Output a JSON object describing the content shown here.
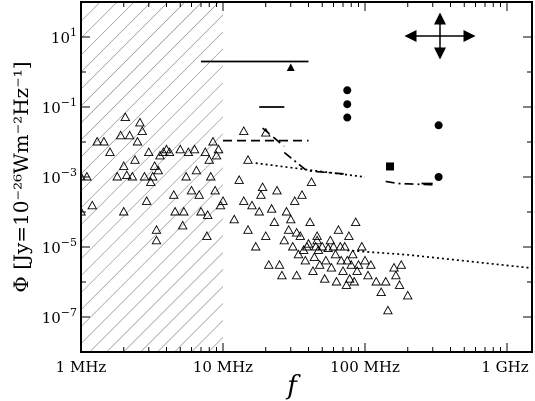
{
  "chart_data": {
    "type": "scatter",
    "xlabel": "f",
    "ylabel": "Φ [Jy=10⁻²⁶Wm⁻²Hz⁻¹]",
    "xscale": "log",
    "yscale": "log",
    "xlim_hz": [
      1000000,
      1500000000
    ],
    "ylim": [
      1e-08,
      100
    ],
    "x_ticks": [
      {
        "value": 1000000,
        "label": "1 MHz"
      },
      {
        "value": 10000000,
        "label": "10 MHz"
      },
      {
        "value": 100000000,
        "label": "100 MHz"
      },
      {
        "value": 1000000000,
        "label": "1 GHz"
      }
    ],
    "y_ticks": [
      {
        "value": 10,
        "base": "10",
        "exp": "1"
      },
      {
        "value": 0.1,
        "base": "10",
        "exp": "−1"
      },
      {
        "value": 0.001,
        "base": "10",
        "exp": "−3"
      },
      {
        "value": 1e-05,
        "base": "10",
        "exp": "−5"
      },
      {
        "value": 1e-07,
        "base": "10",
        "exp": "−7"
      }
    ],
    "hatched_region_hz": [
      1000000,
      10000000
    ],
    "legend": "none",
    "grid": false,
    "series": [
      {
        "marker": "open-triangle",
        "points": [
          [
            1000000.0,
            0.001
          ],
          [
            1000000.0,
            0.0001
          ],
          [
            1100000.0,
            0.001
          ],
          [
            1200000.0,
            0.00015
          ],
          [
            1300000.0,
            0.01
          ],
          [
            1450000.0,
            0.01
          ],
          [
            1600000.0,
            0.005
          ],
          [
            1800000.0,
            0.001
          ],
          [
            1900000.0,
            0.015
          ],
          [
            2000000.0,
            0.002
          ],
          [
            2000000.0,
            0.0001
          ],
          [
            2050000.0,
            0.05
          ],
          [
            2100000.0,
            0.0011
          ],
          [
            2200000.0,
            0.015
          ],
          [
            2300000.0,
            0.001
          ],
          [
            2400000.0,
            0.003
          ],
          [
            2500000.0,
            0.01
          ],
          [
            2600000.0,
            0.035
          ],
          [
            2700000.0,
            0.02
          ],
          [
            2800000.0,
            0.001
          ],
          [
            2900000.0,
            0.0002
          ],
          [
            3000000.0,
            0.005
          ],
          [
            3100000.0,
            0.0007
          ],
          [
            3200000.0,
            0.001
          ],
          [
            3300000.0,
            0.002
          ],
          [
            3400000.0,
            3e-05
          ],
          [
            3400000.0,
            1.5e-05
          ],
          [
            3500000.0,
            0.0015
          ],
          [
            3600000.0,
            0.004
          ],
          [
            3800000.0,
            0.005
          ],
          [
            4000000.0,
            0.006
          ],
          [
            4200000.0,
            0.005
          ],
          [
            4500000.0,
            0.0003
          ],
          [
            4600000.0,
            0.0001
          ],
          [
            5000000.0,
            0.006
          ],
          [
            5200000.0,
            4e-05
          ],
          [
            5300000.0,
            0.0001
          ],
          [
            5500000.0,
            0.001
          ],
          [
            5700000.0,
            0.005
          ],
          [
            6000000.0,
            0.0004
          ],
          [
            6300000.0,
            0.006
          ],
          [
            6500000.0,
            0.0015
          ],
          [
            6800000.0,
            0.0003
          ],
          [
            7000000.0,
            0.0001
          ],
          [
            7500000.0,
            0.005
          ],
          [
            7700000.0,
            2e-05
          ],
          [
            7800000.0,
            8e-05
          ],
          [
            8000000.0,
            0.003
          ],
          [
            8200000.0,
            0.001
          ],
          [
            8500000.0,
            0.01
          ],
          [
            8800000.0,
            0.0004
          ],
          [
            9000000.0,
            0.004
          ],
          [
            9300000.0,
            0.006
          ],
          [
            9600000.0,
            0.00015
          ],
          [
            10000000.0,
            0.0002
          ],
          [
            14000000.0,
            0.02
          ],
          [
            20000000.0,
            0.018
          ],
          [
            15000000.0,
            0.003
          ],
          [
            13000000.0,
            0.0008
          ],
          [
            12000000.0,
            6e-05
          ],
          [
            14000000.0,
            0.0002
          ],
          [
            15000000.0,
            3e-05
          ],
          [
            16000000.0,
            0.00015
          ],
          [
            17000000.0,
            1e-05
          ],
          [
            18000000.0,
            0.0001
          ],
          [
            18500000.0,
            0.0003
          ],
          [
            19000000.0,
            0.0005
          ],
          [
            20000000.0,
            2e-05
          ],
          [
            21000000.0,
            3e-06
          ],
          [
            22000000.0,
            0.00012
          ],
          [
            23000000.0,
            5e-05
          ],
          [
            24000000.0,
            0.0004
          ],
          [
            25000000.0,
            3e-06
          ],
          [
            26000000.0,
            1.5e-06
          ],
          [
            27000000.0,
            1.5e-05
          ],
          [
            28000000.0,
            0.0001
          ],
          [
            29000000.0,
            3e-05
          ],
          [
            30000000.0,
            6e-05
          ],
          [
            31000000.0,
            1e-05
          ],
          [
            32000000.0,
            0.0002
          ],
          [
            33000000.0,
            1.5e-06
          ],
          [
            34000000.0,
            6e-06
          ],
          [
            35000000.0,
            2e-05
          ],
          [
            36000000.0,
            0.0003
          ],
          [
            37000000.0,
            8e-06
          ],
          [
            38000000.0,
            4e-06
          ],
          [
            39000000.0,
            1e-05
          ],
          [
            40000000.0,
            1.2e-05
          ],
          [
            41000000.0,
            5e-05
          ],
          [
            42000000.0,
            0.0007
          ],
          [
            43000000.0,
            2e-06
          ],
          [
            44000000.0,
            5e-06
          ],
          [
            45000000.0,
            1e-05
          ],
          [
            46000000.0,
            2e-05
          ],
          [
            47000000.0,
            8e-06
          ],
          [
            48000000.0,
            3e-06
          ],
          [
            50000000.0,
            1e-05
          ],
          [
            52000000.0,
            1.2e-06
          ],
          [
            53000000.0,
            4e-06
          ],
          [
            55000000.0,
            9e-06
          ],
          [
            57000000.0,
            1.5e-05
          ],
          [
            58000000.0,
            2.5e-06
          ],
          [
            60000000.0,
            1e-05
          ],
          [
            62000000.0,
            6e-06
          ],
          [
            63000000.0,
            1e-06
          ],
          [
            65000000.0,
            3e-05
          ],
          [
            67000000.0,
            1e-05
          ],
          [
            68000000.0,
            4e-06
          ],
          [
            70000000.0,
            2e-06
          ],
          [
            72000000.0,
            1e-05
          ],
          [
            74000000.0,
            8e-07
          ],
          [
            75000000.0,
            4e-06
          ],
          [
            77000000.0,
            2e-05
          ],
          [
            78000000.0,
            1.2e-06
          ],
          [
            80000000.0,
            3e-06
          ],
          [
            82000000.0,
            6e-06
          ],
          [
            84000000.0,
            1e-06
          ],
          [
            86000000.0,
            5e-05
          ],
          [
            88000000.0,
            2e-06
          ],
          [
            90000000.0,
            3e-06
          ],
          [
            95000000.0,
            1e-05
          ],
          [
            100000000.0,
            4e-06
          ],
          [
            105000000.0,
            1.5e-06
          ],
          [
            110000000.0,
            3e-06
          ],
          [
            120000000.0,
            1e-06
          ],
          [
            130000000.0,
            5e-07
          ],
          [
            145000000.0,
            1.5e-07
          ],
          [
            160000000.0,
            2.5e-06
          ],
          [
            175000000.0,
            8e-07
          ],
          [
            200000000.0,
            4e-07
          ],
          [
            180000000.0,
            3e-06
          ],
          [
            165000000.0,
            1.5e-06
          ],
          [
            140000000.0,
            1e-06
          ],
          [
            33000000.0,
            2.5e-05
          ],
          [
            46000000.0,
            1.5e-05
          ]
        ]
      },
      {
        "marker": "filled-circle",
        "points": [
          [
            75000000.0,
            0.3
          ],
          [
            75000000.0,
            0.12
          ],
          [
            75000000.0,
            0.05
          ],
          [
            330000000.0,
            0.03
          ],
          [
            330000000.0,
            0.001
          ]
        ]
      },
      {
        "marker": "filled-square",
        "points": [
          [
            150000000.0,
            0.002
          ]
        ]
      },
      {
        "marker": "filled-triangle",
        "points": [
          [
            30000000.0,
            1.3
          ]
        ]
      },
      {
        "style": "solid",
        "lines": [
          [
            [
              7000000.0,
              2.0
            ],
            [
              40000000.0,
              2.0
            ]
          ],
          [
            [
              18000000.0,
              0.1
            ],
            [
              27000000.0,
              0.1
            ]
          ],
          [
            [
              250000000.0,
              0.00065
            ],
            [
              300000000.0,
              0.00065
            ]
          ]
        ]
      },
      {
        "style": "dashed",
        "lines": [
          [
            [
              10000000.0,
              0.011
            ],
            [
              40000000.0,
              0.011
            ]
          ],
          [
            [
              19000000.0,
              0.025
            ],
            [
              27000000.0,
              0.0075
            ]
          ]
        ]
      },
      {
        "style": "dash-dot",
        "lines": [
          [
            [
              27000000.0,
              0.005
            ],
            [
              39000000.0,
              0.0015
            ],
            [
              75000000.0,
              0.0012
            ]
          ],
          [
            [
              140000000.0,
              0.00075
            ],
            [
              170000000.0,
              0.00065
            ],
            [
              300000000.0,
              0.0006
            ]
          ]
        ]
      },
      {
        "style": "dotted",
        "lines": [
          [
            [
              17000000.0,
              0.0025
            ],
            [
              40000000.0,
              0.0016
            ],
            [
              100000000.0,
              0.001
            ]
          ],
          [
            [
              75000000.0,
              8e-06
            ],
            [
              200000000.0,
              6e-06
            ],
            [
              1500000000.0,
              2.5e-06
            ]
          ]
        ]
      }
    ]
  }
}
